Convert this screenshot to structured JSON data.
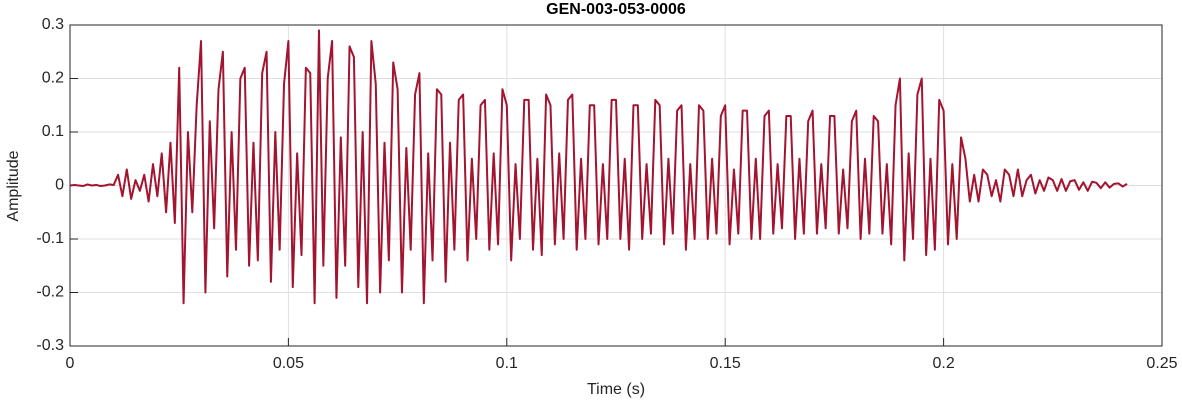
{
  "chart_data": {
    "type": "line",
    "title": "GEN-003-053-0006",
    "x_label": "Time (s)",
    "y_label": "Amplitude",
    "x": [
      0,
      0.001,
      0.002,
      0.003,
      0.004,
      0.005,
      0.006,
      0.007,
      0.008,
      0.009,
      0.01,
      0.011,
      0.012,
      0.013,
      0.014,
      0.015,
      0.016,
      0.017,
      0.018,
      0.019,
      0.02,
      0.021,
      0.022,
      0.023,
      0.024,
      0.025,
      0.026,
      0.027,
      0.028,
      0.029,
      0.03,
      0.031,
      0.032,
      0.033,
      0.034,
      0.035,
      0.036,
      0.037,
      0.038,
      0.039,
      0.04,
      0.041,
      0.042,
      0.043,
      0.044,
      0.045,
      0.046,
      0.047,
      0.048,
      0.049,
      0.05,
      0.051,
      0.052,
      0.053,
      0.054,
      0.055,
      0.056,
      0.057,
      0.058,
      0.059,
      0.06,
      0.061,
      0.062,
      0.063,
      0.064,
      0.065,
      0.066,
      0.067,
      0.068,
      0.069,
      0.07,
      0.071,
      0.072,
      0.073,
      0.074,
      0.075,
      0.076,
      0.077,
      0.078,
      0.079,
      0.08,
      0.081,
      0.082,
      0.083,
      0.084,
      0.085,
      0.086,
      0.087,
      0.088,
      0.089,
      0.09,
      0.091,
      0.092,
      0.093,
      0.094,
      0.095,
      0.096,
      0.097,
      0.098,
      0.099,
      0.1,
      0.101,
      0.102,
      0.103,
      0.104,
      0.105,
      0.106,
      0.107,
      0.108,
      0.109,
      0.11,
      0.111,
      0.112,
      0.113,
      0.114,
      0.115,
      0.116,
      0.117,
      0.118,
      0.119,
      0.12,
      0.121,
      0.122,
      0.123,
      0.124,
      0.125,
      0.126,
      0.127,
      0.128,
      0.129,
      0.13,
      0.131,
      0.132,
      0.133,
      0.134,
      0.135,
      0.136,
      0.137,
      0.138,
      0.139,
      0.14,
      0.141,
      0.142,
      0.143,
      0.144,
      0.145,
      0.146,
      0.147,
      0.148,
      0.149,
      0.15,
      0.151,
      0.152,
      0.153,
      0.154,
      0.155,
      0.156,
      0.157,
      0.158,
      0.159,
      0.16,
      0.161,
      0.162,
      0.163,
      0.164,
      0.165,
      0.166,
      0.167,
      0.168,
      0.169,
      0.17,
      0.171,
      0.172,
      0.173,
      0.174,
      0.175,
      0.176,
      0.177,
      0.178,
      0.179,
      0.18,
      0.181,
      0.182,
      0.183,
      0.184,
      0.185,
      0.186,
      0.187,
      0.188,
      0.189,
      0.19,
      0.191,
      0.192,
      0.193,
      0.194,
      0.195,
      0.196,
      0.197,
      0.198,
      0.199,
      0.2,
      0.201,
      0.202,
      0.203,
      0.204,
      0.205,
      0.206,
      0.207,
      0.208,
      0.209,
      0.21,
      0.211,
      0.212,
      0.213,
      0.214,
      0.215,
      0.216,
      0.217,
      0.218,
      0.219,
      0.22,
      0.221,
      0.222,
      0.223,
      0.224,
      0.225,
      0.226,
      0.227,
      0.228,
      0.229,
      0.23,
      0.231,
      0.232,
      0.233,
      0.234,
      0.235,
      0.236,
      0.237,
      0.238,
      0.239,
      0.24,
      0.241,
      0.242
    ],
    "series": [
      {
        "color": "#a2142f",
        "values": [
          0,
          0.001,
          0,
          -0.001,
          0.002,
          0,
          0.001,
          -0.001,
          0,
          0.002,
          0.001,
          0.02,
          -0.02,
          0.03,
          -0.025,
          0.01,
          -0.01,
          0.02,
          -0.03,
          0.04,
          -0.02,
          0.06,
          -0.05,
          0.08,
          -0.07,
          0.22,
          -0.22,
          0.1,
          -0.05,
          0.15,
          0.27,
          -0.2,
          0.12,
          -0.08,
          0.18,
          0.25,
          -0.17,
          0.1,
          -0.12,
          0.2,
          0.22,
          -0.15,
          0.08,
          -0.14,
          0.21,
          0.25,
          -0.18,
          0.1,
          -0.12,
          0.19,
          0.27,
          -0.19,
          0.06,
          -0.13,
          0.22,
          0.21,
          -0.22,
          0.29,
          -0.15,
          0.2,
          0.27,
          -0.21,
          0.09,
          -0.15,
          0.26,
          0.24,
          -0.19,
          0.1,
          -0.22,
          0.27,
          0.19,
          -0.2,
          0.08,
          -0.14,
          0.23,
          0.18,
          -0.2,
          0.07,
          -0.12,
          0.17,
          0.21,
          -0.22,
          0.06,
          -0.14,
          0.18,
          0.17,
          -0.18,
          0.08,
          -0.12,
          0.16,
          0.17,
          -0.14,
          0.05,
          -0.1,
          0.15,
          0.16,
          -0.12,
          0.06,
          -0.11,
          0.18,
          0.15,
          -0.14,
          0.04,
          -0.1,
          0.16,
          0.16,
          -0.12,
          0.05,
          -0.13,
          0.17,
          0.15,
          -0.11,
          0.06,
          -0.1,
          0.16,
          0.17,
          -0.12,
          0.05,
          -0.1,
          0.15,
          0.15,
          -0.11,
          0.04,
          -0.1,
          0.16,
          0.16,
          -0.1,
          0.05,
          -0.12,
          0.15,
          0.15,
          -0.1,
          0.04,
          -0.09,
          0.16,
          0.15,
          -0.11,
          0.05,
          -0.09,
          0.14,
          0.15,
          -0.12,
          0.04,
          -0.1,
          0.15,
          0.14,
          -0.1,
          0.05,
          -0.09,
          0.13,
          0.15,
          -0.11,
          0.03,
          -0.09,
          0.14,
          0.14,
          -0.1,
          0.05,
          -0.1,
          0.13,
          0.14,
          -0.09,
          0.04,
          -0.08,
          0.13,
          0.13,
          -0.1,
          0.05,
          -0.09,
          0.12,
          0.14,
          -0.09,
          0.04,
          -0.08,
          0.13,
          0.13,
          -0.09,
          0.03,
          -0.08,
          0.12,
          0.14,
          -0.1,
          0.05,
          -0.09,
          0.13,
          0.12,
          -0.09,
          0.04,
          -0.11,
          0.15,
          0.2,
          -0.14,
          0.06,
          -0.1,
          0.17,
          0.2,
          -0.13,
          0.05,
          -0.12,
          0.16,
          0.14,
          -0.11,
          0.04,
          -0.1,
          0.09,
          0.05,
          -0.03,
          0.02,
          -0.03,
          0.03,
          0.02,
          -0.02,
          0.01,
          -0.03,
          0.03,
          0.02,
          -0.02,
          0.03,
          -0.02,
          0.01,
          0.02,
          -0.015,
          0.01,
          -0.01,
          0.015,
          0.01,
          -0.01,
          0.012,
          -0.01,
          0.008,
          0.01,
          -0.008,
          0.006,
          -0.01,
          0.007,
          0.005,
          -0.005,
          0.006,
          -0.004,
          0.003,
          0.004,
          -0.002,
          0.003
        ]
      }
    ],
    "xlim": [
      0,
      0.25
    ],
    "xticks": [
      0,
      0.05,
      0.1,
      0.15,
      0.2,
      0.25
    ],
    "ylim": [
      -0.3,
      0.3
    ],
    "yticks": [
      -0.3,
      -0.2,
      -0.1,
      0,
      0.1,
      0.2,
      0.3
    ],
    "grid": true
  }
}
